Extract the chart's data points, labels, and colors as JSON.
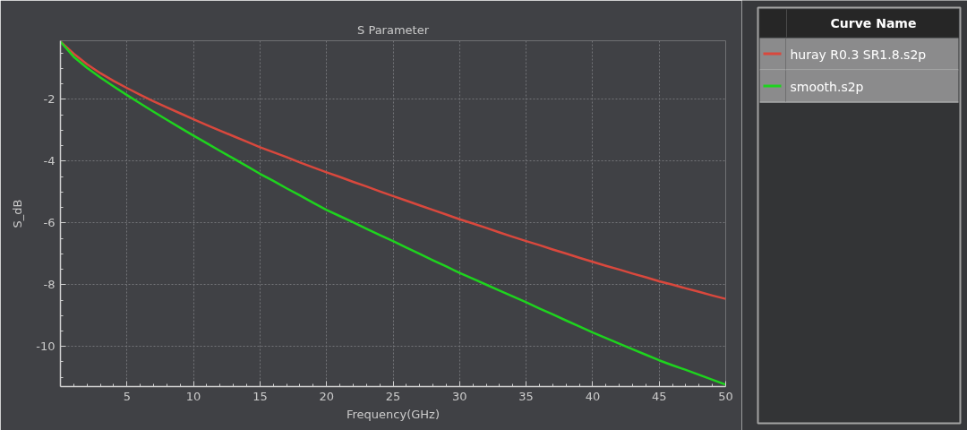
{
  "chart_data": {
    "type": "line",
    "title": "S Parameter",
    "xlabel": "Frequency(GHz)",
    "ylabel": "S_dB",
    "legend_title": "Curve Name",
    "x": [
      0,
      1,
      2,
      3,
      4,
      5,
      6,
      7,
      8,
      9,
      10,
      11,
      12,
      13,
      14,
      15,
      16,
      17,
      18,
      19,
      20,
      21,
      22,
      23,
      24,
      25,
      26,
      27,
      28,
      29,
      30,
      31,
      32,
      33,
      34,
      35,
      36,
      37,
      38,
      39,
      40,
      41,
      42,
      43,
      44,
      45,
      46,
      47,
      48,
      49,
      50
    ],
    "series": [
      {
        "name": "huray R0.3 SR1.8.s2p",
        "color": "#d9483d",
        "values": [
          -0.13,
          -0.52,
          -0.86,
          -1.15,
          -1.4,
          -1.63,
          -1.85,
          -2.06,
          -2.26,
          -2.45,
          -2.64,
          -2.83,
          -3.01,
          -3.19,
          -3.37,
          -3.55,
          -3.71,
          -3.87,
          -4.04,
          -4.2,
          -4.36,
          -4.51,
          -4.67,
          -4.82,
          -4.98,
          -5.13,
          -5.28,
          -5.43,
          -5.58,
          -5.73,
          -5.88,
          -6.02,
          -6.16,
          -6.31,
          -6.45,
          -6.59,
          -6.72,
          -6.86,
          -6.99,
          -7.13,
          -7.26,
          -7.39,
          -7.51,
          -7.64,
          -7.76,
          -7.89,
          -8.0,
          -8.12,
          -8.23,
          -8.35,
          -8.46
        ]
      },
      {
        "name": "smooth.s2p",
        "color": "#1ed31e",
        "values": [
          -0.13,
          -0.62,
          -0.98,
          -1.29,
          -1.58,
          -1.86,
          -2.13,
          -2.4,
          -2.66,
          -2.92,
          -3.17,
          -3.42,
          -3.67,
          -3.91,
          -4.16,
          -4.41,
          -4.64,
          -4.88,
          -5.11,
          -5.35,
          -5.58,
          -5.78,
          -5.98,
          -6.19,
          -6.39,
          -6.59,
          -6.8,
          -7.0,
          -7.21,
          -7.41,
          -7.62,
          -7.81,
          -8.0,
          -8.19,
          -8.38,
          -8.57,
          -8.77,
          -8.96,
          -9.16,
          -9.35,
          -9.55,
          -9.73,
          -9.91,
          -10.09,
          -10.27,
          -10.45,
          -10.61,
          -10.76,
          -10.92,
          -11.08,
          -11.24
        ]
      }
    ],
    "xlim": [
      0,
      50
    ],
    "ylim": [
      -11.3,
      -0.1
    ],
    "xticks": [
      {
        "value": 1,
        "label": null
      },
      {
        "value": 2,
        "label": null
      },
      {
        "value": 3,
        "label": null
      },
      {
        "value": 4,
        "label": null
      },
      5,
      {
        "value": 6,
        "label": null
      },
      {
        "value": 7,
        "label": null
      },
      {
        "value": 8,
        "label": null
      },
      {
        "value": 9,
        "label": null
      },
      10,
      {
        "value": 11,
        "label": null
      },
      {
        "value": 12,
        "label": null
      },
      {
        "value": 13,
        "label": null
      },
      {
        "value": 14,
        "label": null
      },
      15,
      {
        "value": 16,
        "label": null
      },
      {
        "value": 17,
        "label": null
      },
      {
        "value": 18,
        "label": null
      },
      {
        "value": 19,
        "label": null
      },
      20,
      {
        "value": 21,
        "label": null
      },
      {
        "value": 22,
        "label": null
      },
      {
        "value": 23,
        "label": null
      },
      {
        "value": 24,
        "label": null
      },
      25,
      {
        "value": 26,
        "label": null
      },
      {
        "value": 27,
        "label": null
      },
      {
        "value": 28,
        "label": null
      },
      {
        "value": 29,
        "label": null
      },
      30,
      {
        "value": 31,
        "label": null
      },
      {
        "value": 32,
        "label": null
      },
      {
        "value": 33,
        "label": null
      },
      {
        "value": 34,
        "label": null
      },
      35,
      {
        "value": 36,
        "label": null
      },
      {
        "value": 37,
        "label": null
      },
      {
        "value": 38,
        "label": null
      },
      {
        "value": 39,
        "label": null
      },
      40,
      {
        "value": 41,
        "label": null
      },
      {
        "value": 42,
        "label": null
      },
      {
        "value": 43,
        "label": null
      },
      {
        "value": 44,
        "label": null
      },
      45,
      {
        "value": 46,
        "label": null
      },
      {
        "value": 47,
        "label": null
      },
      {
        "value": 48,
        "label": null
      },
      {
        "value": 49,
        "label": null
      },
      50
    ],
    "yticks": [
      {
        "value": -0.5,
        "label": null
      },
      {
        "value": -1,
        "label": null
      },
      {
        "value": -1.5,
        "label": null
      },
      -2,
      {
        "value": -2.5,
        "label": null
      },
      {
        "value": -3,
        "label": null
      },
      {
        "value": -3.5,
        "label": null
      },
      -4,
      {
        "value": -4.5,
        "label": null
      },
      {
        "value": -5,
        "label": null
      },
      {
        "value": -5.5,
        "label": null
      },
      -6,
      {
        "value": -6.5,
        "label": null
      },
      {
        "value": -7,
        "label": null
      },
      {
        "value": -7.5,
        "label": null
      },
      -8,
      {
        "value": -8.5,
        "label": null
      },
      {
        "value": -9,
        "label": null
      },
      {
        "value": -9.5,
        "label": null
      },
      -10,
      {
        "value": -10.5,
        "label": null
      },
      {
        "value": -11,
        "label": null
      }
    ],
    "grid": true,
    "legend": "right",
    "marker": "none",
    "line_style": "solid"
  }
}
